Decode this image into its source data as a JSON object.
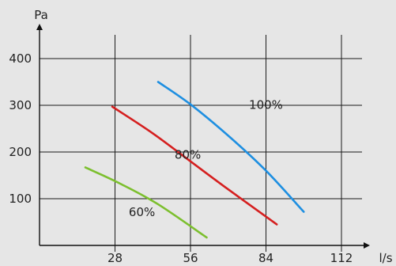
{
  "chart_data": {
    "type": "line",
    "xlabel": "l/s",
    "ylabel": "Pa",
    "xlim": [
      0,
      112
    ],
    "ylim": [
      0,
      400
    ],
    "x_ticks": [
      28,
      56,
      84,
      112
    ],
    "y_ticks": [
      100,
      200,
      300,
      400
    ],
    "x_tick_labels": [
      "28",
      "56",
      "84",
      "112"
    ],
    "y_tick_labels": [
      "100",
      "200",
      "300",
      "400"
    ],
    "grid": true,
    "series": [
      {
        "name": "100%",
        "color": "#1e8fe1",
        "points": [
          [
            44,
            350
          ],
          [
            56,
            302
          ],
          [
            70,
            235
          ],
          [
            84,
            160
          ],
          [
            98,
            72
          ]
        ]
      },
      {
        "name": "80%",
        "color": "#d51f1f",
        "points": [
          [
            27,
            297
          ],
          [
            42,
            240
          ],
          [
            56,
            180
          ],
          [
            70,
            120
          ],
          [
            88,
            45
          ]
        ]
      },
      {
        "name": "60%",
        "color": "#7cbf2e",
        "points": [
          [
            17,
            167
          ],
          [
            30,
            132
          ],
          [
            44,
            88
          ],
          [
            62,
            17
          ]
        ]
      }
    ],
    "labels": [
      {
        "series": "100%",
        "text": "100%",
        "x": 84,
        "y": 292
      },
      {
        "series": "80%",
        "text": "80%",
        "x": 55,
        "y": 186
      },
      {
        "series": "60%",
        "text": "60%",
        "x": 38,
        "y": 63
      }
    ]
  }
}
